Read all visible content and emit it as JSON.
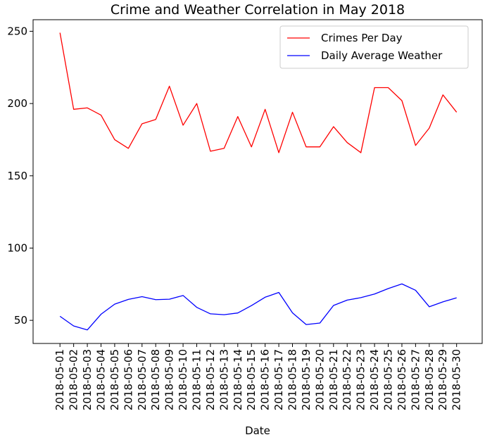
{
  "chart_data": {
    "type": "line",
    "title": "Crime and Weather Correlation in May 2018",
    "xlabel": "Date",
    "ylabel": "",
    "ylim": [
      34,
      258
    ],
    "yticks": [
      50,
      100,
      150,
      200,
      250
    ],
    "grid": false,
    "legend_position": "top-right",
    "x": [
      "2018-05-01",
      "2018-05-02",
      "2018-05-03",
      "2018-05-04",
      "2018-05-05",
      "2018-05-06",
      "2018-05-07",
      "2018-05-08",
      "2018-05-09",
      "2018-05-10",
      "2018-05-11",
      "2018-05-12",
      "2018-05-13",
      "2018-05-14",
      "2018-05-15",
      "2018-05-16",
      "2018-05-17",
      "2018-05-18",
      "2018-05-19",
      "2018-05-20",
      "2018-05-21",
      "2018-05-22",
      "2018-05-23",
      "2018-05-24",
      "2018-05-25",
      "2018-05-26",
      "2018-05-27",
      "2018-05-28",
      "2018-05-29",
      "2018-05-30"
    ],
    "series": [
      {
        "name": "Crimes Per Day",
        "color": "#ff0000",
        "values": [
          249,
          196,
          197,
          192,
          175,
          169,
          186,
          189,
          212,
          185,
          200,
          167,
          169,
          191,
          170,
          196,
          166,
          194,
          170,
          170,
          184,
          173,
          166,
          211,
          211,
          202,
          171,
          183,
          206,
          194
        ]
      },
      {
        "name": "Daily Average Weather",
        "color": "#0000ff",
        "values": [
          52.8,
          46.1,
          43.4,
          54.2,
          61.2,
          64.5,
          66.4,
          64.3,
          64.6,
          67.2,
          59.0,
          54.5,
          53.9,
          55.1,
          60.2,
          66.0,
          69.3,
          55.2,
          47.1,
          48.1,
          60.3,
          64.0,
          65.7,
          68.2,
          72.0,
          75.2,
          70.8,
          59.4,
          62.8,
          65.6
        ]
      }
    ]
  }
}
